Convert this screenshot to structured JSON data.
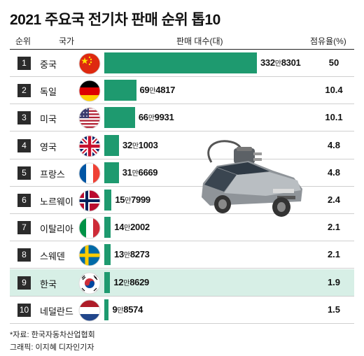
{
  "chart_data": {
    "type": "bar",
    "title": "2021 주요국 전기차 판매 순위 톱10",
    "columns": {
      "rank": "순위",
      "country": "국가",
      "sales": "판매 대수(대)",
      "share": "점유율(%)"
    },
    "unit_man": "만",
    "rows": [
      {
        "rank": "1",
        "country": "중국",
        "sales": 3328301,
        "man": "332",
        "rest": "8301",
        "share": "50",
        "flag": "cn"
      },
      {
        "rank": "2",
        "country": "독일",
        "sales": 694817,
        "man": "69",
        "rest": "4817",
        "share": "10.4",
        "flag": "de"
      },
      {
        "rank": "3",
        "country": "미국",
        "sales": 669931,
        "man": "66",
        "rest": "9931",
        "share": "10.1",
        "flag": "us"
      },
      {
        "rank": "4",
        "country": "영국",
        "sales": 321003,
        "man": "32",
        "rest": "1003",
        "share": "4.8",
        "flag": "uk"
      },
      {
        "rank": "5",
        "country": "프랑스",
        "sales": 316669,
        "man": "31",
        "rest": "6669",
        "share": "4.8",
        "flag": "fr"
      },
      {
        "rank": "6",
        "country": "노르웨이",
        "sales": 157999,
        "man": "15",
        "rest": "7999",
        "share": "2.4",
        "flag": "no"
      },
      {
        "rank": "7",
        "country": "이탈리아",
        "sales": 142002,
        "man": "14",
        "rest": "2002",
        "share": "2.1",
        "flag": "it"
      },
      {
        "rank": "8",
        "country": "스웨덴",
        "sales": 138273,
        "man": "13",
        "rest": "8273",
        "share": "2.1",
        "flag": "se"
      },
      {
        "rank": "9",
        "country": "한국",
        "sales": 128629,
        "man": "12",
        "rest": "8629",
        "share": "1.9",
        "flag": "kr",
        "highlight": true
      },
      {
        "rank": "10",
        "country": "네덜란드",
        "sales": 98574,
        "man": "9",
        "rest": "8574",
        "share": "1.5",
        "flag": "nl"
      }
    ],
    "bar_color": "#1e9a6f",
    "highlight_color": "#d7efe6"
  },
  "footer": {
    "source": "*자료: 한국자동차산업협회",
    "credit": "그래픽: 이지혜 디자인기자"
  },
  "illustration": "electric-car-plug-icon"
}
